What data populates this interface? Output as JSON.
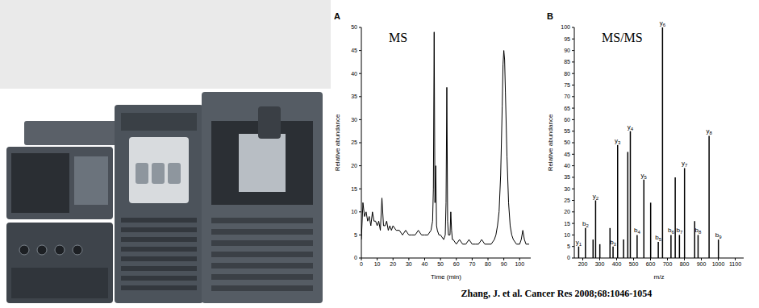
{
  "chart_data": [
    {
      "type": "line",
      "panel": "A",
      "title": "MS",
      "x_label": "Time (min)",
      "y_label": "Relative abundance",
      "x": [
        0,
        1,
        2,
        3,
        4,
        5,
        6,
        7,
        8,
        9,
        10,
        11,
        12,
        13,
        14,
        15,
        16,
        17,
        18,
        19,
        20,
        22,
        24,
        26,
        28,
        30,
        32,
        34,
        36,
        38,
        40,
        42,
        44,
        45,
        45.5,
        46,
        46.5,
        47,
        47.5,
        48,
        49,
        50,
        52,
        53,
        53.5,
        54,
        54.5,
        55,
        56,
        56.5,
        57,
        57.5,
        58,
        60,
        62,
        64,
        66,
        68,
        70,
        72,
        74,
        76,
        78,
        80,
        82,
        84,
        85,
        86,
        87,
        88,
        89,
        89.5,
        90,
        90.5,
        91,
        92,
        93,
        94,
        95,
        96,
        98,
        100,
        101,
        102,
        103,
        104,
        106
      ],
      "values": [
        4,
        12,
        9,
        10,
        8,
        9,
        7,
        10,
        8,
        8,
        7,
        8,
        6,
        13,
        7,
        7,
        8,
        6,
        7,
        6,
        7,
        6,
        6,
        5,
        6,
        5,
        5,
        5,
        6,
        5,
        5,
        5,
        6,
        8,
        15,
        49,
        12,
        20,
        7,
        6,
        5,
        5,
        4,
        5,
        12,
        37,
        8,
        5,
        5,
        10,
        6,
        4,
        4,
        3,
        4,
        3,
        3,
        4,
        3,
        3,
        3,
        4,
        3,
        3,
        3,
        4,
        5,
        7,
        10,
        18,
        33,
        42,
        45,
        43,
        36,
        22,
        12,
        7,
        5,
        4,
        3,
        3,
        4,
        6,
        4,
        3,
        3
      ],
      "color": "#000000",
      "xlim": [
        0,
        107
      ],
      "xticks": [
        0,
        10,
        20,
        30,
        40,
        50,
        60,
        70,
        80,
        90,
        100
      ],
      "ylim": [
        0,
        50
      ],
      "yticks": [
        0,
        5,
        10,
        15,
        20,
        25,
        30,
        35,
        40,
        45,
        50
      ]
    },
    {
      "type": "bar",
      "panel": "B",
      "title": "MS/MS",
      "x_label": "m/z",
      "y_label": "Relative abundance",
      "x": [
        175,
        215,
        260,
        275,
        300,
        360,
        378,
        405,
        440,
        465,
        480,
        520,
        560,
        600,
        645,
        670,
        720,
        745,
        770,
        800,
        860,
        880,
        945,
        1000
      ],
      "values": [
        5,
        13,
        8,
        25,
        6,
        13,
        5,
        49,
        8,
        46,
        55,
        10,
        34,
        24,
        7,
        100,
        10,
        35,
        10,
        39,
        16,
        10,
        53,
        8
      ],
      "labels": [
        "y1",
        "b2",
        null,
        "y2",
        null,
        null,
        "b3",
        "y3",
        null,
        null,
        "y4",
        "b4",
        "y5",
        null,
        "b5",
        "y6",
        "b6",
        null,
        "b7",
        "y7",
        null,
        "b8",
        "y8",
        "b9"
      ],
      "color": "#000000",
      "xlim": [
        150,
        1150
      ],
      "xticks": [
        200,
        300,
        400,
        500,
        600,
        700,
        800,
        900,
        1000,
        1100
      ],
      "ylim": [
        0,
        100
      ],
      "yticks": [
        0,
        5,
        10,
        15,
        20,
        25,
        30,
        35,
        40,
        45,
        50,
        55,
        60,
        65,
        70,
        75,
        80,
        85,
        90,
        95,
        100
      ]
    }
  ],
  "caption": "Zhang, J. et al. Cancer Res 2008;68:1046-1054"
}
